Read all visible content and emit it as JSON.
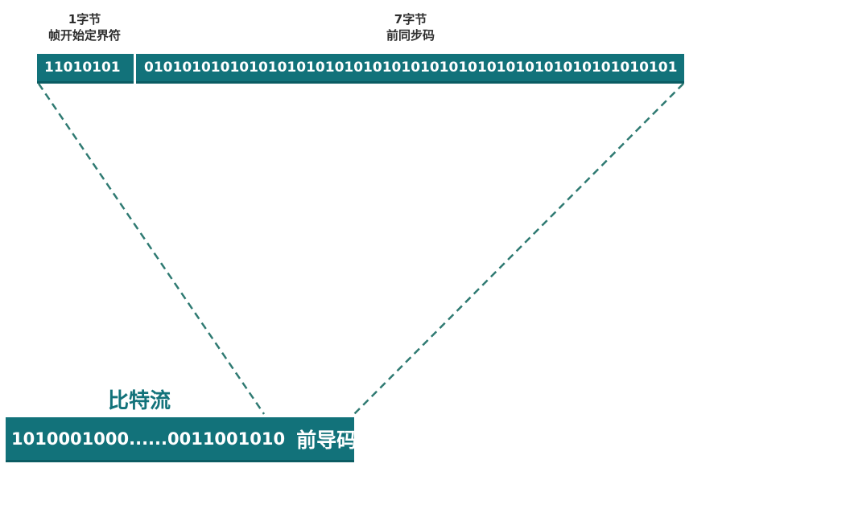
{
  "frame_fields": {
    "sfd": {
      "size": "1字节",
      "name": "帧开始定界符",
      "bits": "11010101"
    },
    "preamble_sync": {
      "size": "7字节",
      "name": "前同步码",
      "bits": "01010101010101010101010101010101010101010101010101010101"
    }
  },
  "bitstream": {
    "title": "比特流",
    "bits": "1010001000......0011001010",
    "tag": "前导码"
  },
  "colors": {
    "bar": "#12727a",
    "line": "#2f7a72"
  }
}
